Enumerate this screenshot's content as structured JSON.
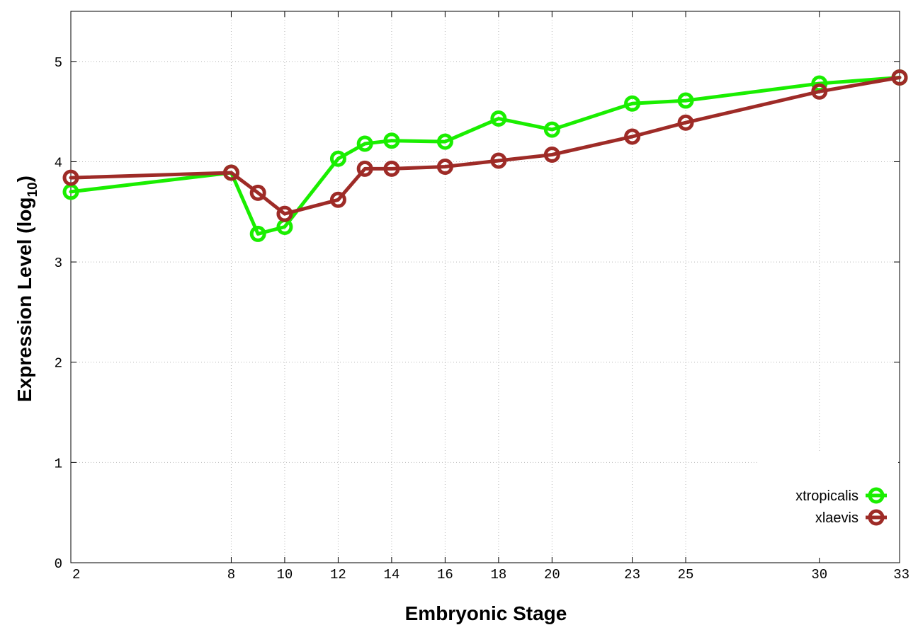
{
  "chart_data": {
    "type": "line",
    "x": [
      2,
      8,
      9,
      10,
      12,
      13,
      14,
      16,
      18,
      20,
      23,
      25,
      30,
      33
    ],
    "x_tick_labels": [
      "2",
      "8",
      "10",
      "12",
      "14",
      "16",
      "18",
      "20",
      "23",
      "25",
      "30",
      "33"
    ],
    "y_tick_labels": [
      "0",
      "1",
      "2",
      "3",
      "4",
      "5"
    ],
    "ylim": [
      0,
      5.5
    ],
    "grid": true,
    "legend_position": "bottom-right",
    "xlabel": "Embryonic Stage",
    "ylabel": "Expression Level (log",
    "ylabel_subscript": "10",
    "ylabel_suffix": ")",
    "series": [
      {
        "name": "xtropicalis",
        "color": "#1aee00",
        "values": [
          3.7,
          3.89,
          3.28,
          3.35,
          4.03,
          4.18,
          4.21,
          4.2,
          4.43,
          4.32,
          4.58,
          4.61,
          4.78,
          4.84
        ]
      },
      {
        "name": "xlaevis",
        "color": "#9e2b27",
        "values": [
          3.84,
          3.89,
          3.69,
          3.48,
          3.62,
          3.93,
          3.93,
          3.95,
          4.01,
          4.07,
          4.25,
          4.39,
          4.7,
          4.84
        ]
      }
    ]
  }
}
